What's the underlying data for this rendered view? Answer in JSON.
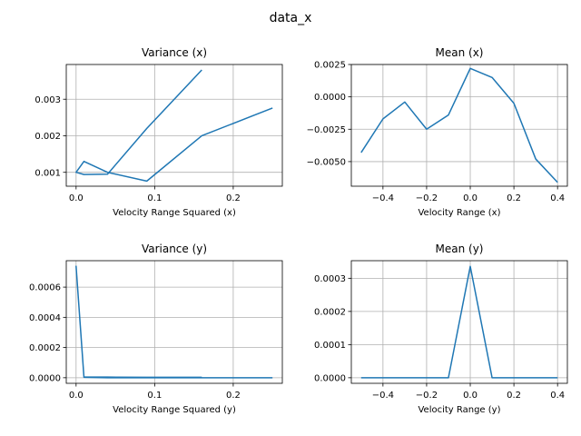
{
  "figure_title": "data_x",
  "line_color": "#1f77b4",
  "grid_color": "#b0b0b0",
  "chart_data": [
    {
      "type": "line",
      "title": "Variance (x)",
      "xlabel": "Velocity Range Squared (x)",
      "ylabel": "",
      "grid": true,
      "xlim": [
        -0.0125,
        0.2625
      ],
      "ylim": [
        0.00062,
        0.00395
      ],
      "xticks": [
        0.0,
        0.1,
        0.2
      ],
      "xtick_labels": [
        "0.0",
        "0.1",
        "0.2"
      ],
      "yticks": [
        0.001,
        0.002,
        0.003
      ],
      "ytick_labels": [
        "0.001",
        "0.002",
        "0.003"
      ],
      "series": [
        {
          "x": [
            0.25,
            0.16,
            0.09,
            0.04,
            0.01,
            0.0,
            0.01,
            0.04,
            0.09,
            0.16
          ],
          "values": [
            0.00276,
            0.002,
            0.00076,
            0.001,
            0.0013,
            0.001,
            0.00094,
            0.00095,
            0.0022,
            0.0038
          ]
        }
      ]
    },
    {
      "type": "line",
      "title": "Mean (x)",
      "xlabel": "Velocity Range (x)",
      "ylabel": "",
      "grid": true,
      "xlim": [
        -0.545,
        0.445
      ],
      "ylim": [
        -0.0069,
        0.0025
      ],
      "xticks": [
        -0.4,
        -0.2,
        0.0,
        0.2,
        0.4
      ],
      "xtick_labels": [
        "−0.4",
        "−0.2",
        "0.0",
        "0.2",
        "0.4"
      ],
      "yticks": [
        -0.005,
        -0.0025,
        0.0,
        0.0025
      ],
      "ytick_labels": [
        "−0.0050",
        "−0.0025",
        "0.0000",
        "0.0025"
      ],
      "series": [
        {
          "x": [
            -0.5,
            -0.4,
            -0.3,
            -0.2,
            -0.1,
            0.0,
            0.1,
            0.2,
            0.3,
            0.4
          ],
          "values": [
            -0.0043,
            -0.0017,
            -0.0004,
            -0.0025,
            -0.0014,
            0.0022,
            0.0015,
            -0.0005,
            -0.0048,
            -0.0066
          ]
        }
      ]
    },
    {
      "type": "line",
      "title": "Variance (y)",
      "xlabel": "Velocity Range Squared (y)",
      "ylabel": "",
      "grid": true,
      "xlim": [
        -0.0125,
        0.2625
      ],
      "ylim": [
        -3.7e-05,
        0.000775
      ],
      "xticks": [
        0.0,
        0.1,
        0.2
      ],
      "xtick_labels": [
        "0.0",
        "0.1",
        "0.2"
      ],
      "yticks": [
        0.0,
        0.0002,
        0.0004,
        0.0006
      ],
      "ytick_labels": [
        "0.0000",
        "0.0002",
        "0.0004",
        "0.0006"
      ],
      "series": [
        {
          "x": [
            0.25,
            0.16,
            0.09,
            0.04,
            0.01,
            0.0,
            0.01,
            0.04,
            0.09,
            0.16
          ],
          "values": [
            0.0,
            0.0,
            0.0,
            0.0,
            3e-06,
            0.000738,
            5e-06,
            4e-06,
            3e-06,
            3e-06
          ]
        }
      ]
    },
    {
      "type": "line",
      "title": "Mean (y)",
      "xlabel": "Velocity Range (y)",
      "ylabel": "",
      "grid": true,
      "xlim": [
        -0.545,
        0.445
      ],
      "ylim": [
        -1.68e-05,
        0.000353
      ],
      "xticks": [
        -0.4,
        -0.2,
        0.0,
        0.2,
        0.4
      ],
      "xtick_labels": [
        "−0.4",
        "−0.2",
        "0.0",
        "0.2",
        "0.4"
      ],
      "yticks": [
        0.0,
        0.0001,
        0.0002,
        0.0003
      ],
      "ytick_labels": [
        "0.0000",
        "0.0001",
        "0.0002",
        "0.0003"
      ],
      "series": [
        {
          "x": [
            -0.5,
            -0.4,
            -0.3,
            -0.2,
            -0.1,
            0.0,
            0.1,
            0.2,
            0.3,
            0.4
          ],
          "values": [
            0.0,
            0.0,
            0.0,
            0.0,
            0.0,
            0.000336,
            0.0,
            0.0,
            0.0,
            0.0
          ]
        }
      ]
    }
  ]
}
